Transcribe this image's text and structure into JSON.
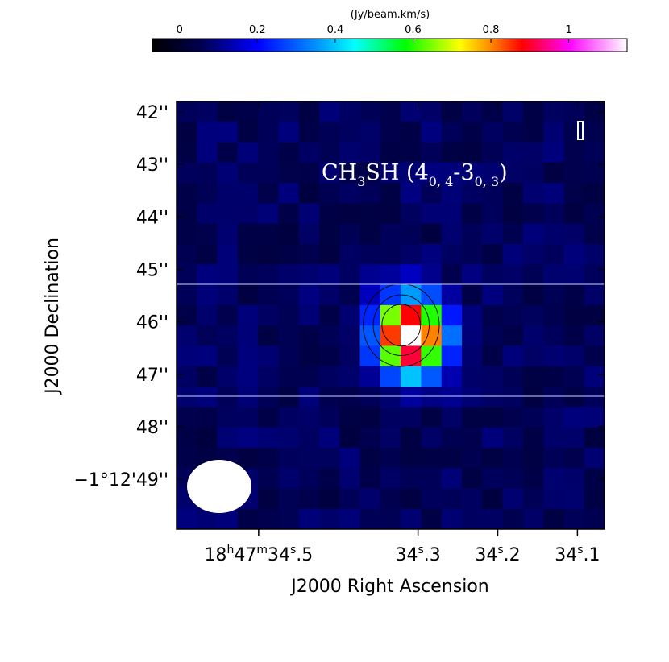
{
  "chart_data": {
    "type": "heatmap",
    "colorbar": {
      "unit_label": "(Jy/beam.km/s)",
      "range": [
        -0.07,
        1.15
      ],
      "ticks": [
        {
          "value": 0,
          "label": "0"
        },
        {
          "value": 0.2,
          "label": "0.2"
        },
        {
          "value": 0.4,
          "label": "0.4"
        },
        {
          "value": 0.6,
          "label": "0.6"
        },
        {
          "value": 0.8,
          "label": "0.8"
        },
        {
          "value": 1.0,
          "label": "1"
        }
      ],
      "colormap": [
        {
          "v": -0.07,
          "c": "#000000"
        },
        {
          "v": 0.05,
          "c": "#00004a"
        },
        {
          "v": 0.2,
          "c": "#0000ff"
        },
        {
          "v": 0.35,
          "c": "#0090ff"
        },
        {
          "v": 0.45,
          "c": "#00ffff"
        },
        {
          "v": 0.58,
          "c": "#00ff00"
        },
        {
          "v": 0.72,
          "c": "#ffff00"
        },
        {
          "v": 0.8,
          "c": "#ff8800"
        },
        {
          "v": 0.88,
          "c": "#ff0000"
        },
        {
          "v": 1.0,
          "c": "#ff00ff"
        },
        {
          "v": 1.15,
          "c": "#ffffff"
        }
      ]
    },
    "title": "CH3SH (4(0,4)-3(0,3))",
    "title_parts": {
      "base": "CH",
      "sub1": "3",
      "mid": "SH (4",
      "sub2": "0, 4",
      "mid2": "-3",
      "sub3": "0, 3",
      "end": ")"
    },
    "xlabel": "J2000 Right Ascension",
    "ylabel": "J2000 Declination",
    "x_ticks": [
      {
        "pos": 0.5,
        "h": "18",
        "m": "47",
        "s": "34",
        "frac": ".5"
      },
      {
        "pos": 0.3,
        "h": "",
        "m": "",
        "s": "34",
        "frac": ".3"
      },
      {
        "pos": 0.2,
        "h": "",
        "m": "",
        "s": "34",
        "frac": ".2"
      },
      {
        "pos": 0.1,
        "h": "",
        "m": "",
        "s": "34",
        "frac": ".1"
      }
    ],
    "x_range": [
      0.603,
      0.066
    ],
    "y_ticks": [
      {
        "pos": 42,
        "label": "42''"
      },
      {
        "pos": 43,
        "label": "43''"
      },
      {
        "pos": 44,
        "label": "44''"
      },
      {
        "pos": 45,
        "label": "45''"
      },
      {
        "pos": 46,
        "label": "46''"
      },
      {
        "pos": 47,
        "label": "47''"
      },
      {
        "pos": 48,
        "label": "48''"
      },
      {
        "pos": 49,
        "label": "−1°12'49''"
      }
    ],
    "y_range": [
      41.8,
      49.95
    ],
    "grid": {
      "cols": 21,
      "rows": 21,
      "peak": {
        "col": 11,
        "row": 11,
        "value": 1.12
      },
      "gauss_sigma_cols": 1.15,
      "gauss_sigma_rows": 1.25,
      "background_noise": 0.1
    },
    "contours": [
      0.3,
      0.55,
      0.8
    ],
    "beam": "ellipse, bottom-left",
    "colors": {
      "contour": "#000000",
      "title": "#ffffff",
      "beam": "#ffffff"
    }
  }
}
